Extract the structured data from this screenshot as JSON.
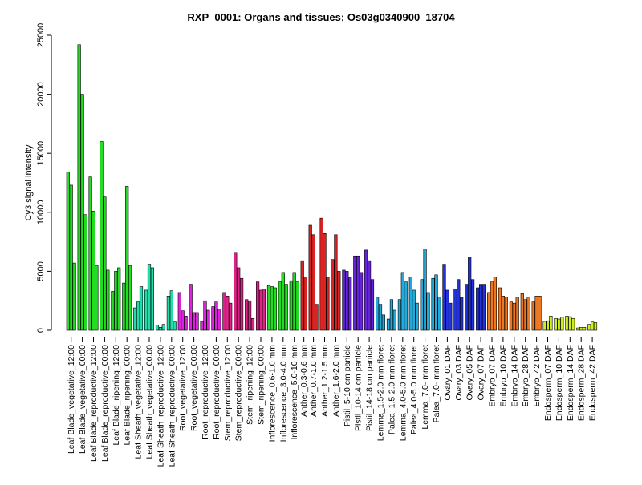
{
  "chart_data": {
    "type": "bar",
    "title": "RXP_0001: Organs and tissues; Os03g0340900_18704",
    "xlabel": "",
    "ylabel": "Cy3 signal intensity",
    "ylim": [
      0,
      25000
    ],
    "yticks": [
      0,
      5000,
      10000,
      15000,
      20000,
      25000
    ],
    "grid": false,
    "legend": "none",
    "groups": [
      {
        "label": "Leaf Blade_vegetative_12:00",
        "color": "#22dd22",
        "values": [
          13400,
          12300,
          5700
        ]
      },
      {
        "label": "Leaf Blade_vegetative_00:00",
        "color": "#22dd22",
        "values": [
          24200,
          20000,
          9800
        ]
      },
      {
        "label": "Leaf Blade_reproductive_12:00",
        "color": "#22dd22",
        "values": [
          13000,
          10100,
          5500
        ]
      },
      {
        "label": "Leaf Blade_reproductive_00:00",
        "color": "#22dd22",
        "values": [
          16000,
          11300,
          5100
        ]
      },
      {
        "label": "Leaf Blade_ripening_12:00",
        "color": "#22dd22",
        "values": [
          3300,
          5000,
          5300
        ]
      },
      {
        "label": "Leaf Blade_ripening_00:00",
        "color": "#22dd22",
        "values": [
          4000,
          12200,
          5500
        ]
      },
      {
        "label": "Leaf Sheath_vegetative_12:00",
        "color": "#22ddaa",
        "values": [
          1900,
          2400,
          3700
        ]
      },
      {
        "label": "Leaf Sheath_vegetative_00:00",
        "color": "#22ddaa",
        "values": [
          3400,
          5600,
          5300
        ]
      },
      {
        "label": "Leaf Sheath_reproductive_12:00",
        "color": "#22ddaa",
        "values": [
          450,
          250,
          500
        ]
      },
      {
        "label": "Leaf Sheath_reproductive_00:00",
        "color": "#22ddaa",
        "values": [
          2900,
          3350,
          700
        ]
      },
      {
        "label": "Root_vegetative_12:00",
        "color": "#dd22dd",
        "values": [
          3200,
          1650,
          1200
        ]
      },
      {
        "label": "Root_vegetative_00:00",
        "color": "#dd22dd",
        "values": [
          3900,
          1500,
          1500
        ]
      },
      {
        "label": "Root_reproductive_12:00",
        "color": "#dd22dd",
        "values": [
          750,
          2500,
          1700
        ]
      },
      {
        "label": "Root_reproductive_00:00",
        "color": "#dd22dd",
        "values": [
          2000,
          2400,
          1800
        ]
      },
      {
        "label": "Stem_reproductive_12:00",
        "color": "#dd2288",
        "values": [
          3200,
          2900,
          2300
        ]
      },
      {
        "label": "Stem_reproductive_00:00",
        "color": "#dd2288",
        "values": [
          6600,
          5300,
          4400
        ]
      },
      {
        "label": "Stem_ripening_12:00",
        "color": "#dd2288",
        "values": [
          2600,
          2500,
          1000
        ]
      },
      {
        "label": "Stem_ripening_00:00",
        "color": "#dd2288",
        "values": [
          4100,
          3400,
          3500
        ]
      },
      {
        "label": "Inflorescence_0.6-1.0 mm",
        "color": "#22dd22",
        "values": [
          3800,
          3700,
          3600
        ]
      },
      {
        "label": "Inflorescence_3.0-4.0 mm",
        "color": "#22dd22",
        "values": [
          4100,
          4900,
          3900
        ]
      },
      {
        "label": "Inflorescence_5.0-10 mm",
        "color": "#22dd22",
        "values": [
          4200,
          4900,
          4100
        ]
      },
      {
        "label": "Anther_0.3-0.6 mm",
        "color": "#dd2222",
        "values": [
          5900,
          4500
        ]
      },
      {
        "label": "Anther_0.7-1.0 mm",
        "color": "#dd2222",
        "values": [
          8900,
          8100,
          2200
        ]
      },
      {
        "label": "Anther_1.2-1.5 mm",
        "color": "#dd2222",
        "values": [
          9500,
          8200,
          4500
        ]
      },
      {
        "label": "Anther_1.6-2.0 mm",
        "color": "#dd2222",
        "values": [
          6000,
          8100,
          5000
        ]
      },
      {
        "label": "Pistil_5-10 cm panicle",
        "color": "#6622dd",
        "values": [
          5100,
          5000,
          4500
        ]
      },
      {
        "label": "Pistil_10-14 cm panicle",
        "color": "#6622dd",
        "values": [
          6300,
          6300,
          4900
        ]
      },
      {
        "label": "Pistil_14-18 cm panicle",
        "color": "#6622dd",
        "values": [
          6800,
          5900,
          4300
        ]
      },
      {
        "label": "Lemma_1.5-2.0 mm floret",
        "color": "#22aadd",
        "values": [
          2800,
          2200,
          1300
        ]
      },
      {
        "label": "Palea_1.5-2.0 mm floret",
        "color": "#22aadd",
        "values": [
          950,
          2600,
          1700
        ]
      },
      {
        "label": "Lemma_4.0-5.0 mm floret",
        "color": "#22aadd",
        "values": [
          2600,
          4900,
          4100
        ]
      },
      {
        "label": "Palea_4.0-5.0 mm floret",
        "color": "#22aadd",
        "values": [
          4500,
          3400,
          2300
        ]
      },
      {
        "label": "Lemma_7.0- mm floret",
        "color": "#22aadd",
        "values": [
          4300,
          6900,
          3200
        ]
      },
      {
        "label": "Palea_7.0- mm floret",
        "color": "#22aadd",
        "values": [
          4400,
          4700,
          2800
        ]
      },
      {
        "label": "Ovary_01 DAF",
        "color": "#2233dd",
        "values": [
          5600,
          3400,
          2300
        ]
      },
      {
        "label": "Ovary_03 DAF",
        "color": "#2233dd",
        "values": [
          3500,
          4300,
          2800
        ]
      },
      {
        "label": "Ovary_05 DAF",
        "color": "#2233dd",
        "values": [
          3900,
          6200,
          4300
        ]
      },
      {
        "label": "Ovary_07 DAF",
        "color": "#2233dd",
        "values": [
          3600,
          3900,
          3900
        ]
      },
      {
        "label": "Embryo_07 DAF",
        "color": "#ee7722",
        "values": [
          3200,
          4100,
          4500
        ]
      },
      {
        "label": "Embryo_10 DAF",
        "color": "#ee7722",
        "values": [
          3600,
          2900,
          2800
        ]
      },
      {
        "label": "Embryo_14 DAF",
        "color": "#ee7722",
        "values": [
          2400,
          2300,
          2800
        ]
      },
      {
        "label": "Embryo_28 DAF",
        "color": "#ee7722",
        "values": [
          3100,
          2600,
          2800
        ]
      },
      {
        "label": "Embryo_42 DAF",
        "color": "#ee7722",
        "values": [
          2400,
          2900,
          2900
        ]
      },
      {
        "label": "Endosperm_07 DAF",
        "color": "#ccee22",
        "values": [
          750,
          800,
          1200
        ]
      },
      {
        "label": "Endosperm_10 DAF",
        "color": "#ccee22",
        "values": [
          1000,
          950,
          1100
        ]
      },
      {
        "label": "Endosperm_14 DAF",
        "color": "#ccee22",
        "values": [
          1200,
          1150,
          1000
        ]
      },
      {
        "label": "Endosperm_28 DAF",
        "color": "#ccee22",
        "values": [
          200,
          250,
          250
        ]
      },
      {
        "label": "Endosperm_42 DAF",
        "color": "#ccee22",
        "values": [
          500,
          700,
          650
        ]
      }
    ]
  }
}
